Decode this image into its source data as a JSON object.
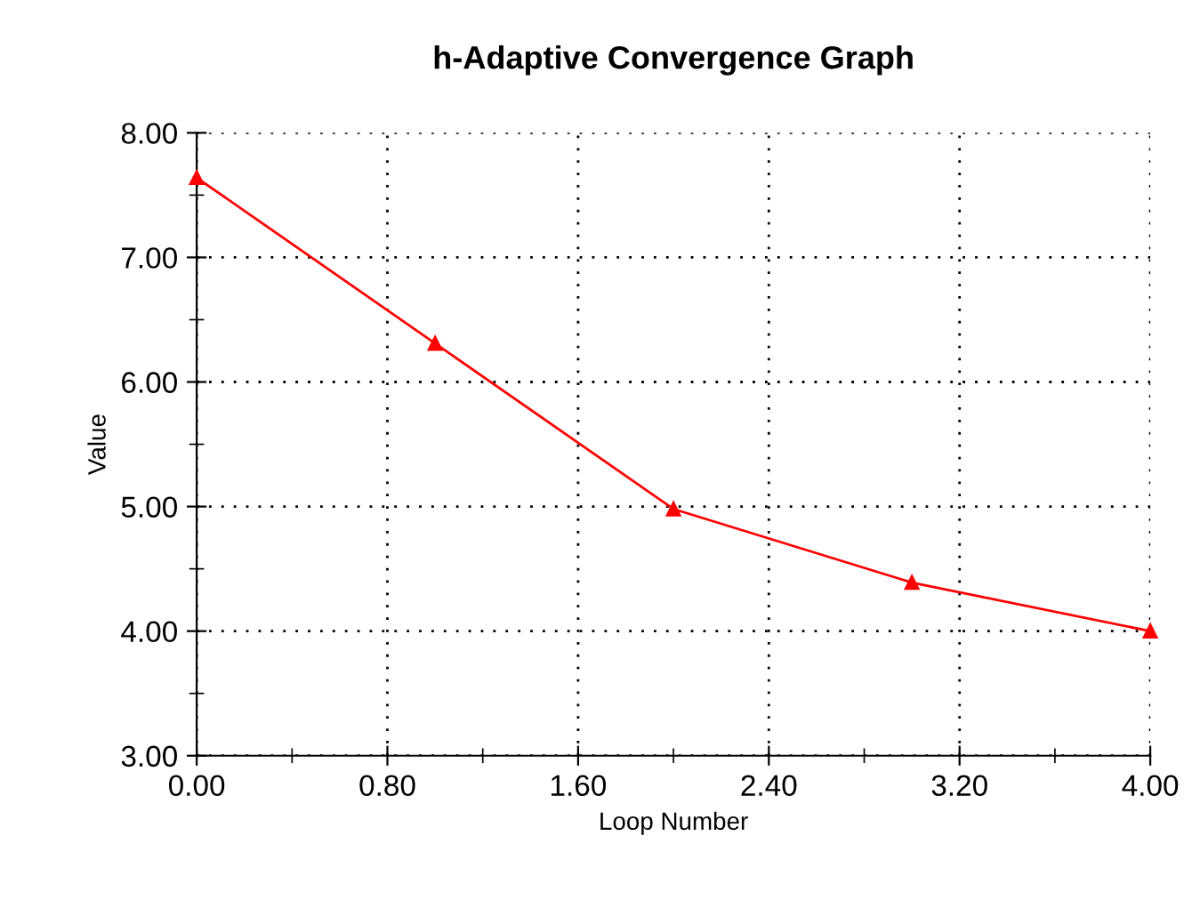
{
  "chart_data": {
    "type": "line",
    "title": "h-Adaptive Convergence Graph",
    "xlabel": "Loop Number",
    "ylabel": "Value",
    "x": [
      0,
      1,
      2,
      3,
      4
    ],
    "series": [
      {
        "color": "#ff0000",
        "values": [
          7.64,
          6.31,
          4.98,
          4.39,
          4.0
        ]
      }
    ],
    "xlim": [
      0,
      4
    ],
    "ylim": [
      3,
      8
    ],
    "xticks": [
      {
        "value": 0,
        "label": "0.00"
      },
      {
        "value": 0.4,
        "label": null
      },
      {
        "value": 0.8,
        "label": "0.80"
      },
      {
        "value": 1.2,
        "label": null
      },
      {
        "value": 1.6,
        "label": "1.60"
      },
      {
        "value": 2.0,
        "label": null
      },
      {
        "value": 2.4,
        "label": "2.40"
      },
      {
        "value": 2.8,
        "label": null
      },
      {
        "value": 3.2,
        "label": "3.20"
      },
      {
        "value": 3.6,
        "label": null
      },
      {
        "value": 4,
        "label": "4.00"
      }
    ],
    "yticks": [
      {
        "value": 3,
        "label": "3.00"
      },
      {
        "value": 3.5,
        "label": null
      },
      {
        "value": 4,
        "label": "4.00"
      },
      {
        "value": 4.5,
        "label": null
      },
      {
        "value": 5,
        "label": "5.00"
      },
      {
        "value": 5.5,
        "label": null
      },
      {
        "value": 6,
        "label": "6.00"
      },
      {
        "value": 6.5,
        "label": null
      },
      {
        "value": 7,
        "label": "7.00"
      },
      {
        "value": 7.5,
        "label": null
      },
      {
        "value": 8,
        "label": "8.00"
      }
    ],
    "grid": true,
    "marker": "triangle",
    "line_style": "solid"
  }
}
